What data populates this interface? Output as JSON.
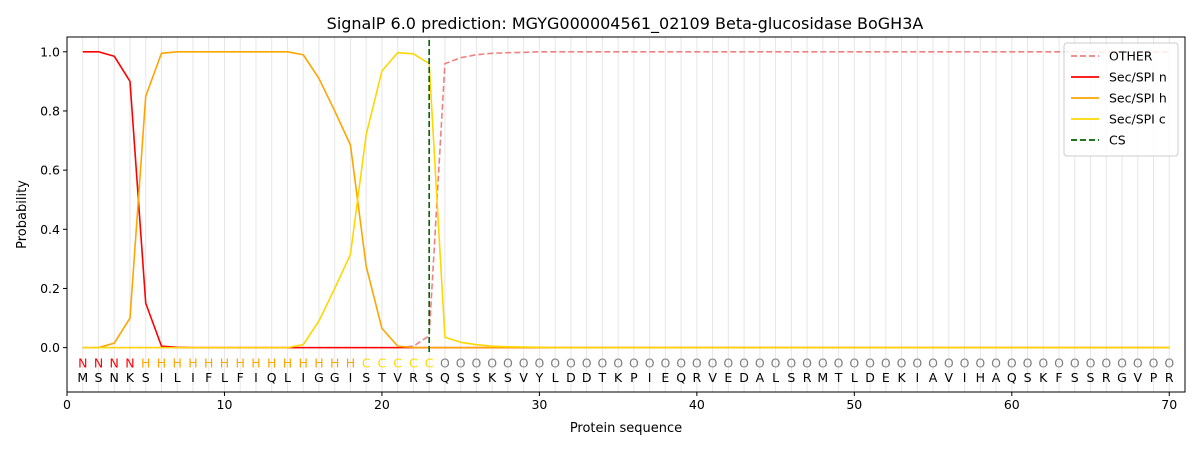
{
  "chart_data": {
    "type": "line",
    "title": "SignalP 6.0 prediction: MGYG000004561_02109 Beta-glucosidase BoGH3A",
    "xlabel": "Protein sequence",
    "ylabel": "Probability",
    "xlim": [
      0,
      71
    ],
    "ylim": [
      -0.15,
      1.05
    ],
    "xticks": [
      0,
      10,
      20,
      30,
      40,
      50,
      60,
      70
    ],
    "yticks": [
      0.0,
      0.2,
      0.4,
      0.6,
      0.8,
      1.0
    ],
    "grid": "vertical lines at each residue",
    "legend_position": "top-right",
    "cleavage_site": 23,
    "sequence": "MSNKSILIFLFIQLIGGISTVRSQSSKSVYLDDTKPIEQRVEDALSRMTLDEKIAVIHAQSKFSSRGVPR",
    "labels": "NNNNHHHHHHHHHHHHHHCCCCCOOOOOOOOOOOOOOOOOOOOOOOOOOOOOOOOOOOOOOOOOOOOOOO",
    "label_colors": {
      "N": "#ff0000",
      "H": "#ffa500",
      "C": "#ffd700",
      "O": "#808080"
    },
    "series": [
      {
        "name": "OTHER",
        "color": "#f08080",
        "dash": true,
        "values": [
          0,
          0,
          0,
          0,
          0,
          0,
          0,
          0,
          0,
          0,
          0,
          0,
          0,
          0,
          0,
          0,
          0,
          0,
          0,
          0,
          0,
          0.005,
          0.04,
          0.96,
          0.98,
          0.99,
          0.995,
          0.997,
          0.998,
          1,
          1,
          1,
          1,
          1,
          1,
          1,
          1,
          1,
          1,
          1,
          1,
          1,
          1,
          1,
          1,
          1,
          1,
          1,
          1,
          1,
          1,
          1,
          1,
          1,
          1,
          1,
          1,
          1,
          1,
          1,
          1,
          1,
          1,
          1,
          1,
          1,
          1,
          1,
          1,
          1
        ]
      },
      {
        "name": "Sec/SPI n",
        "color": "#ff0000",
        "dash": false,
        "values": [
          1.0,
          1.0,
          0.985,
          0.9,
          0.15,
          0.005,
          0.001,
          0,
          0,
          0,
          0,
          0,
          0,
          0,
          0,
          0,
          0,
          0,
          0,
          0,
          0,
          0,
          0,
          0,
          0,
          0,
          0,
          0,
          0,
          0,
          0,
          0,
          0,
          0,
          0,
          0,
          0,
          0,
          0,
          0,
          0,
          0,
          0,
          0,
          0,
          0,
          0,
          0,
          0,
          0,
          0,
          0,
          0,
          0,
          0,
          0,
          0,
          0,
          0,
          0,
          0,
          0,
          0,
          0,
          0,
          0,
          0,
          0,
          0,
          0
        ]
      },
      {
        "name": "Sec/SPI h",
        "color": "#ffa500",
        "dash": false,
        "values": [
          0,
          0,
          0.015,
          0.1,
          0.85,
          0.995,
          1.0,
          1.0,
          1.0,
          1.0,
          1.0,
          1.0,
          1.0,
          1.0,
          0.99,
          0.91,
          0.8,
          0.685,
          0.275,
          0.065,
          0.005,
          0,
          0,
          0,
          0,
          0,
          0,
          0,
          0,
          0,
          0,
          0,
          0,
          0,
          0,
          0,
          0,
          0,
          0,
          0,
          0,
          0,
          0,
          0,
          0,
          0,
          0,
          0,
          0,
          0,
          0,
          0,
          0,
          0,
          0,
          0,
          0,
          0,
          0,
          0,
          0,
          0,
          0,
          0,
          0,
          0,
          0,
          0,
          0,
          0
        ]
      },
      {
        "name": "Sec/SPI c",
        "color": "#ffd700",
        "dash": false,
        "values": [
          0,
          0,
          0,
          0,
          0,
          0,
          0,
          0,
          0,
          0,
          0,
          0,
          0,
          0,
          0.01,
          0.09,
          0.2,
          0.315,
          0.72,
          0.935,
          0.997,
          0.993,
          0.96,
          0.035,
          0.018,
          0.01,
          0.005,
          0.003,
          0.002,
          0.001,
          0,
          0,
          0,
          0,
          0,
          0,
          0,
          0,
          0,
          0,
          0,
          0,
          0,
          0,
          0,
          0,
          0,
          0,
          0,
          0,
          0,
          0,
          0,
          0,
          0,
          0,
          0,
          0,
          0,
          0,
          0,
          0,
          0,
          0,
          0,
          0,
          0,
          0,
          0,
          0
        ]
      },
      {
        "name": "CS",
        "color": "#006400",
        "dash": true,
        "vertical_at": 23
      }
    ]
  }
}
